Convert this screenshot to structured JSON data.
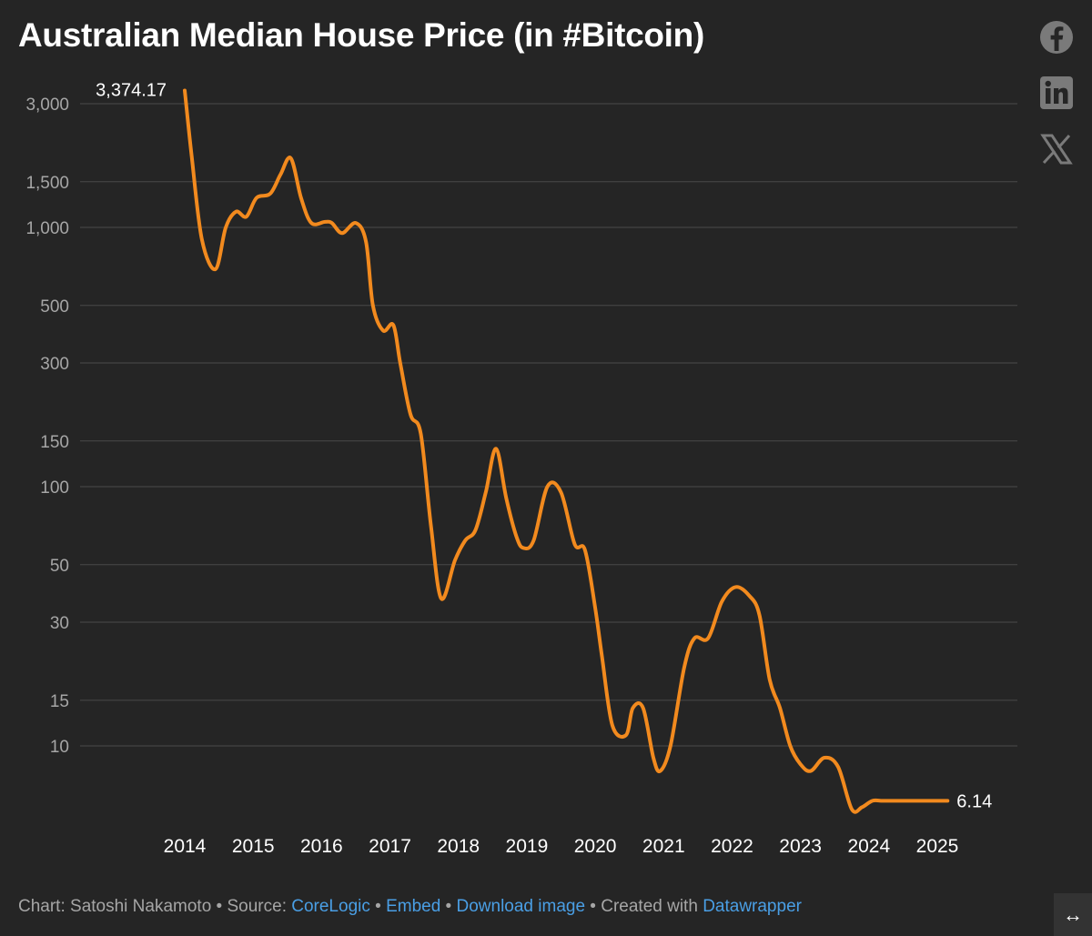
{
  "header": {
    "title": "Australian Median House Price (in #Bitcoin)"
  },
  "share_icons": [
    "facebook-icon",
    "linkedin-icon",
    "x-icon"
  ],
  "footer": {
    "chart_prefix": "Chart: ",
    "author": "Satoshi Nakamoto",
    "sep1": " • Source: ",
    "source_link": "CoreLogic",
    "sep2": " • ",
    "embed_link": "Embed",
    "sep3": "  • ",
    "download_link": "Download image",
    "sep4": " • Created with ",
    "datawrapper_link": "Datawrapper"
  },
  "resize_icon": "↔",
  "colors": {
    "background": "#252525",
    "line": "#f28a1e",
    "grid": "#4a4a4a",
    "link": "#4a9fe5"
  },
  "chart_data": {
    "type": "line",
    "title": "Australian Median House Price (in #Bitcoin)",
    "y_scale": "log",
    "ylim": [
      6,
      3500
    ],
    "y_ticks": [
      3000,
      1500,
      1000,
      500,
      300,
      150,
      100,
      50,
      30,
      15,
      10
    ],
    "y_tick_labels": [
      "3,000",
      "1,500",
      "1,000",
      "500",
      "300",
      "150",
      "100",
      "50",
      "30",
      "15",
      "10"
    ],
    "x_ticks": [
      2014,
      2015,
      2016,
      2017,
      2018,
      2019,
      2020,
      2021,
      2022,
      2023,
      2024,
      2025
    ],
    "x_tick_labels": [
      "2014",
      "2015",
      "2016",
      "2017",
      "2018",
      "2019",
      "2020",
      "2021",
      "2022",
      "2023",
      "2024",
      "2025"
    ],
    "xlim": [
      2014,
      2025.2
    ],
    "grid": true,
    "series": [
      {
        "color": "#f28a1e",
        "x": [
          2014.0,
          2014.1,
          2014.25,
          2014.45,
          2014.6,
          2014.75,
          2014.9,
          2015.05,
          2015.25,
          2015.4,
          2015.55,
          2015.7,
          2015.85,
          2016.05,
          2016.15,
          2016.3,
          2016.5,
          2016.65,
          2016.75,
          2016.9,
          2017.05,
          2017.15,
          2017.3,
          2017.45,
          2017.6,
          2017.75,
          2017.95,
          2018.1,
          2018.25,
          2018.4,
          2018.55,
          2018.7,
          2018.85,
          2018.95,
          2019.1,
          2019.3,
          2019.5,
          2019.7,
          2019.85,
          2020.0,
          2020.1,
          2020.25,
          2020.45,
          2020.55,
          2020.7,
          2020.85,
          2020.95,
          2021.1,
          2021.3,
          2021.45,
          2021.65,
          2021.85,
          2022.05,
          2022.25,
          2022.4,
          2022.55,
          2022.7,
          2022.85,
          2023.0,
          2023.15,
          2023.35,
          2023.55,
          2023.75,
          2023.9,
          2024.05,
          2024.2,
          2024.4,
          2024.55,
          2024.7,
          2024.85,
          2025.0,
          2025.15
        ],
        "y": [
          3374.17,
          1900,
          900,
          690,
          1000,
          1150,
          1100,
          1300,
          1350,
          1600,
          1850,
          1300,
          1040,
          1050,
          1040,
          950,
          1040,
          880,
          500,
          400,
          420,
          300,
          190,
          160,
          70,
          37,
          52,
          62,
          68,
          95,
          140,
          90,
          64,
          58,
          62,
          100,
          95,
          60,
          57,
          34,
          22,
          12,
          11,
          14,
          14,
          9,
          8,
          10,
          20,
          26,
          26,
          36,
          41,
          38,
          32,
          18,
          14,
          10,
          8.5,
          8,
          9,
          8.3,
          5.7,
          5.8,
          6.14,
          6.14,
          6.14,
          6.14,
          6.14,
          6.14,
          6.14,
          6.14
        ]
      }
    ],
    "annotations": [
      {
        "text": "3,374.17",
        "x": 2014.0,
        "y": 3374.17
      },
      {
        "text": "6.14",
        "x": 2025.15,
        "y": 6.14
      }
    ]
  }
}
